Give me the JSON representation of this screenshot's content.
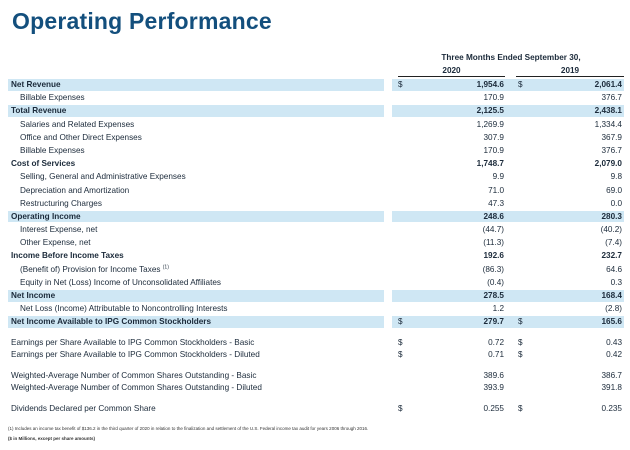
{
  "title": "Operating Performance",
  "header": {
    "period": "Three Months Ended September 30,",
    "year_a": "2020",
    "year_b": "2019"
  },
  "rows": [
    {
      "label": "Net Revenue",
      "d1": "$",
      "a": "1,954.6",
      "d2": "$",
      "b": "2,061.4"
    },
    {
      "label": "Billable Expenses",
      "a": "170.9",
      "b": "376.7"
    },
    {
      "label": "Total Revenue",
      "a": "2,125.5",
      "b": "2,438.1"
    },
    {
      "label": "Salaries and Related Expenses",
      "a": "1,269.9",
      "b": "1,334.4"
    },
    {
      "label": "Office and Other Direct Expenses",
      "a": "307.9",
      "b": "367.9"
    },
    {
      "label": "Billable Expenses",
      "a": "170.9",
      "b": "376.7"
    },
    {
      "label": "Cost of Services",
      "a": "1,748.7",
      "b": "2,079.0"
    },
    {
      "label": "Selling, General and Administrative Expenses",
      "a": "9.9",
      "b": "9.8"
    },
    {
      "label": "Depreciation and Amortization",
      "a": "71.0",
      "b": "69.0"
    },
    {
      "label": "Restructuring Charges",
      "a": "47.3",
      "b": "0.0"
    },
    {
      "label": "Operating Income",
      "a": "248.6",
      "b": "280.3"
    },
    {
      "label": "Interest Expense, net",
      "a": "(44.7)",
      "b": "(40.2)"
    },
    {
      "label": "Other Expense, net",
      "a": "(11.3)",
      "b": "(7.4)"
    },
    {
      "label": "Income Before Income Taxes",
      "a": "192.6",
      "b": "232.7"
    },
    {
      "label": "(Benefit of) Provision for Income Taxes",
      "sup": "(1)",
      "a": "(86.3)",
      "b": "64.6"
    },
    {
      "label": "Equity in Net (Loss) Income of Unconsolidated Affiliates",
      "a": "(0.4)",
      "b": "0.3"
    },
    {
      "label": "Net Income",
      "a": "278.5",
      "b": "168.4"
    },
    {
      "label": "Net Loss (Income) Attributable to Noncontrolling Interests",
      "a": "1.2",
      "b": "(2.8)"
    },
    {
      "label": "Net Income Available to IPG Common Stockholders",
      "d1": "$",
      "a": "279.7",
      "d2": "$",
      "b": "165.6"
    },
    {
      "label": "Earnings per Share Available to IPG Common Stockholders - Basic",
      "d1": "$",
      "a": "0.72",
      "d2": "$",
      "b": "0.43"
    },
    {
      "label": "Earnings per Share Available to IPG Common Stockholders - Diluted",
      "d1": "$",
      "a": "0.71",
      "d2": "$",
      "b": "0.42"
    },
    {
      "label": "Weighted-Average Number of Common Shares Outstanding - Basic",
      "a": "389.6",
      "b": "386.7"
    },
    {
      "label": "Weighted-Average Number of Common Shares Outstanding - Diluted",
      "a": "393.9",
      "b": "391.8"
    },
    {
      "label": "Dividends Declared per Common Share",
      "d1": "$",
      "a": "0.255",
      "d2": "$",
      "b": "0.235"
    }
  ],
  "footnote": "(1) Includes an income tax benefit of $136.2 in the third quarter of 2020 in relation to the finalization and settlement of the U.S. Federal income tax audit for years 2006 through 2016.",
  "units_note": "($ in Millions, except per share amounts)",
  "colors": {
    "title": "#134f7d",
    "highlight": "#cfe7f4"
  }
}
